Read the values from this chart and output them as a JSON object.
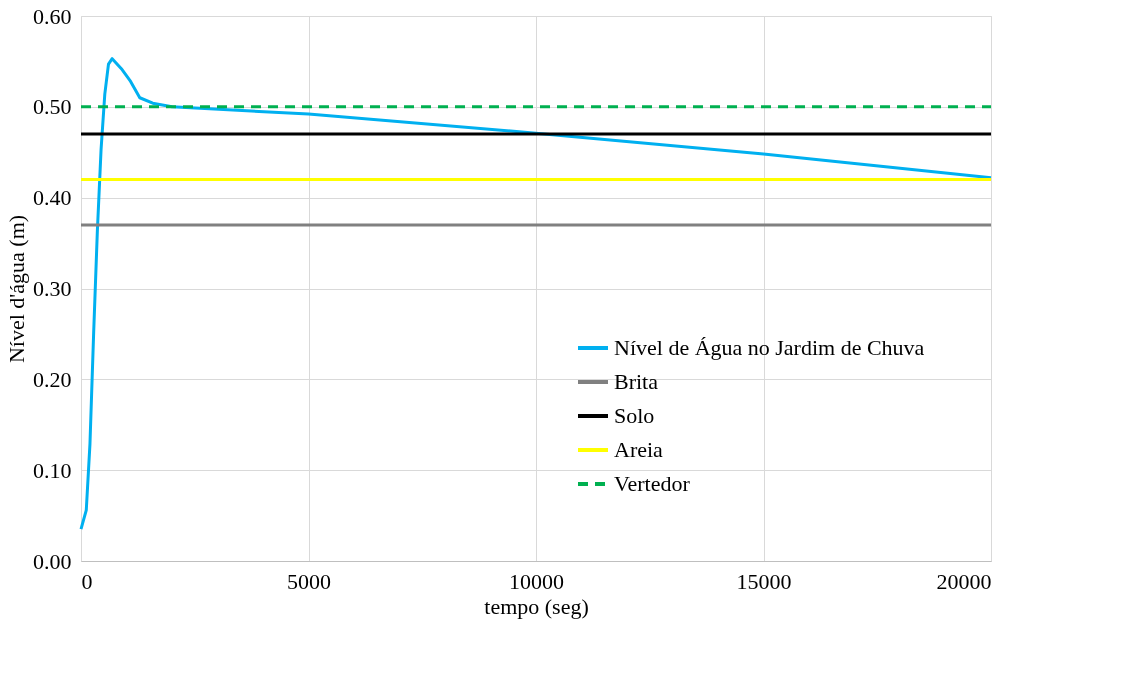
{
  "chart_data": {
    "type": "line",
    "xlabel": "tempo (seg)",
    "ylabel": "Nível d'água (m)",
    "xlim": [
      0,
      20000
    ],
    "xticks": [
      0,
      5000,
      10000,
      15000,
      20000
    ],
    "ylim": [
      0,
      0.6
    ],
    "yticks": [
      {
        "value": 0,
        "label": "0.00"
      },
      {
        "value": 0.1,
        "label": "0.10"
      },
      {
        "value": 0.2,
        "label": "0.20"
      },
      {
        "value": 0.3,
        "label": "0.30"
      },
      {
        "value": 0.4,
        "label": "0.40"
      },
      {
        "value": 0.5,
        "label": "0.50"
      },
      {
        "value": 0.6,
        "label": "0.60"
      }
    ],
    "grid": true,
    "legend": "bottom right",
    "marker": "none",
    "series": [
      {
        "name": "Nível de Água no Jardim de Chuva",
        "color": "#00b0f0",
        "line_style": "solid",
        "x": [
          0,
          116,
          197,
          278,
          360,
          441,
          523,
          604,
          685,
          887,
          1090,
          1292,
          1577,
          2000,
          5000,
          10000,
          15000,
          20000
        ],
        "values": [
          0.035,
          0.056,
          0.129,
          0.251,
          0.364,
          0.453,
          0.514,
          0.547,
          0.553,
          0.542,
          0.528,
          0.51,
          0.504,
          0.5,
          0.492,
          0.471,
          0.448,
          0.422
        ]
      },
      {
        "name": "Brita",
        "color": "#808080",
        "line_style": "solid",
        "x": [
          0,
          20000
        ],
        "values": [
          0.37,
          0.37
        ]
      },
      {
        "name": "Solo",
        "color": "#000000",
        "line_style": "solid",
        "x": [
          0,
          20000
        ],
        "values": [
          0.47,
          0.47
        ]
      },
      {
        "name": "Areia",
        "color": "#ffff00",
        "line_style": "solid",
        "x": [
          0,
          20000
        ],
        "values": [
          0.42,
          0.42
        ]
      },
      {
        "name": "Vertedor",
        "color": "#00b050",
        "line_style": "dashed",
        "x": [
          0,
          20000
        ],
        "values": [
          0.5,
          0.5
        ]
      }
    ]
  }
}
